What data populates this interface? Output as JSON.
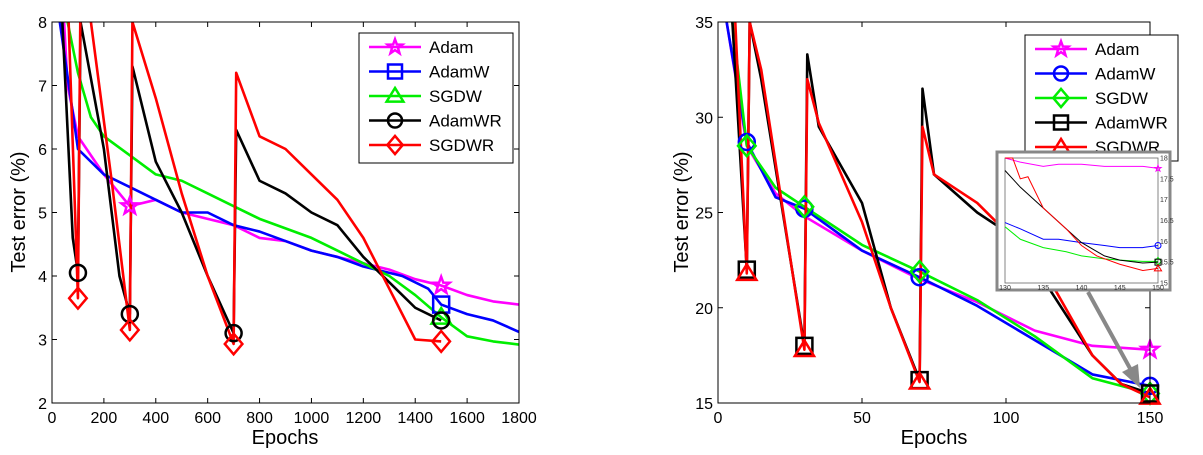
{
  "chart_data": [
    {
      "type": "line",
      "xlabel": "Epochs",
      "ylabel": "Test error (%)",
      "xlim": [
        0,
        1800
      ],
      "ylim": [
        2,
        8
      ],
      "xticks": [
        0,
        200,
        400,
        600,
        800,
        1000,
        1200,
        1400,
        1600,
        1800
      ],
      "yticks": [
        2,
        3,
        4,
        5,
        6,
        7,
        8
      ],
      "legend": "top-right",
      "grid": false,
      "series": [
        {
          "name": "Adam",
          "color": "#ff00ff",
          "marker": "star",
          "marker_x": [
            300,
            1500
          ],
          "points": [
            [
              40,
              8.5
            ],
            [
              60,
              7.0
            ],
            [
              100,
              6.2
            ],
            [
              150,
              5.9
            ],
            [
              200,
              5.6
            ],
            [
              300,
              5.1
            ],
            [
              400,
              5.2
            ],
            [
              500,
              5.0
            ],
            [
              600,
              4.9
            ],
            [
              700,
              4.8
            ],
            [
              800,
              4.6
            ],
            [
              900,
              4.55
            ],
            [
              1000,
              4.4
            ],
            [
              1100,
              4.3
            ],
            [
              1200,
              4.2
            ],
            [
              1300,
              4.1
            ],
            [
              1400,
              3.95
            ],
            [
              1500,
              3.85
            ],
            [
              1600,
              3.7
            ],
            [
              1700,
              3.6
            ],
            [
              1800,
              3.55
            ]
          ]
        },
        {
          "name": "AdamW",
          "color": "#0000ff",
          "marker": "square",
          "marker_x": [
            1500
          ],
          "points": [
            [
              30,
              8.0
            ],
            [
              100,
              6.0
            ],
            [
              200,
              5.6
            ],
            [
              300,
              5.4
            ],
            [
              400,
              5.2
            ],
            [
              500,
              5.0
            ],
            [
              600,
              5.0
            ],
            [
              700,
              4.8
            ],
            [
              800,
              4.7
            ],
            [
              900,
              4.55
            ],
            [
              1000,
              4.4
            ],
            [
              1100,
              4.3
            ],
            [
              1200,
              4.15
            ],
            [
              1350,
              4.0
            ],
            [
              1450,
              3.8
            ],
            [
              1500,
              3.55
            ],
            [
              1600,
              3.4
            ],
            [
              1700,
              3.3
            ],
            [
              1800,
              3.12
            ]
          ]
        },
        {
          "name": "SGDW",
          "color": "#00ee00",
          "marker": "triangle",
          "marker_x": [
            1500
          ],
          "points": [
            [
              60,
              8.0
            ],
            [
              100,
              7.2
            ],
            [
              150,
              6.5
            ],
            [
              200,
              6.2
            ],
            [
              300,
              5.9
            ],
            [
              400,
              5.6
            ],
            [
              500,
              5.5
            ],
            [
              600,
              5.3
            ],
            [
              700,
              5.1
            ],
            [
              800,
              4.9
            ],
            [
              900,
              4.75
            ],
            [
              1000,
              4.6
            ],
            [
              1100,
              4.4
            ],
            [
              1200,
              4.2
            ],
            [
              1300,
              4.0
            ],
            [
              1400,
              3.7
            ],
            [
              1500,
              3.35
            ],
            [
              1600,
              3.05
            ],
            [
              1700,
              2.97
            ],
            [
              1800,
              2.92
            ]
          ]
        },
        {
          "name": "AdamWR",
          "color": "#000000",
          "marker": "circle",
          "marker_x": [
            100,
            300,
            700,
            1500
          ],
          "points": [
            [
              40,
              8.0
            ],
            [
              80,
              4.6
            ],
            [
              100,
              4.05
            ],
            [
              110,
              8.0
            ],
            [
              200,
              6.0
            ],
            [
              260,
              4.0
            ],
            [
              300,
              3.4
            ],
            [
              310,
              7.3
            ],
            [
              400,
              5.8
            ],
            [
              500,
              5.0
            ],
            [
              600,
              4.0
            ],
            [
              700,
              3.1
            ],
            [
              710,
              6.3
            ],
            [
              800,
              5.5
            ],
            [
              900,
              5.3
            ],
            [
              1000,
              5.0
            ],
            [
              1100,
              4.8
            ],
            [
              1200,
              4.3
            ],
            [
              1300,
              3.9
            ],
            [
              1400,
              3.5
            ],
            [
              1500,
              3.3
            ]
          ]
        },
        {
          "name": "SGDWR",
          "color": "#ff0000",
          "marker": "diamond",
          "marker_x": [
            100,
            300,
            700,
            1500
          ],
          "points": [
            [
              60,
              8.5
            ],
            [
              100,
              3.65
            ],
            [
              110,
              8.5
            ],
            [
              150,
              8.0
            ],
            [
              230,
              5.5
            ],
            [
              300,
              3.15
            ],
            [
              310,
              8.0
            ],
            [
              400,
              6.8
            ],
            [
              500,
              5.3
            ],
            [
              600,
              4.0
            ],
            [
              700,
              2.93
            ],
            [
              710,
              7.2
            ],
            [
              800,
              6.2
            ],
            [
              900,
              6.0
            ],
            [
              1000,
              5.6
            ],
            [
              1100,
              5.2
            ],
            [
              1200,
              4.6
            ],
            [
              1300,
              3.8
            ],
            [
              1400,
              3.0
            ],
            [
              1500,
              2.97
            ]
          ]
        }
      ]
    },
    {
      "type": "line",
      "xlabel": "Epochs",
      "ylabel": "Test error (%)",
      "xlim": [
        0,
        150
      ],
      "ylim": [
        15,
        35
      ],
      "xticks": [
        0,
        50,
        100,
        150
      ],
      "yticks": [
        15,
        20,
        25,
        30,
        35
      ],
      "legend": "top-right",
      "grid": false,
      "series": [
        {
          "name": "Adam",
          "color": "#ff00ff",
          "marker": "star",
          "marker_x": [
            150
          ],
          "points": [
            [
              3,
              35
            ],
            [
              10,
              28.5
            ],
            [
              20,
              26
            ],
            [
              30,
              24.8
            ],
            [
              50,
              23
            ],
            [
              70,
              21.5
            ],
            [
              90,
              20.3
            ],
            [
              110,
              18.8
            ],
            [
              130,
              18
            ],
            [
              150,
              17.8
            ]
          ]
        },
        {
          "name": "AdamW",
          "color": "#0000ff",
          "marker": "circle",
          "marker_x": [
            10,
            30,
            70,
            150
          ],
          "points": [
            [
              3,
              35
            ],
            [
              10,
              28.7
            ],
            [
              20,
              25.8
            ],
            [
              30,
              25.2
            ],
            [
              50,
              23
            ],
            [
              70,
              21.6
            ],
            [
              90,
              20.1
            ],
            [
              110,
              18.3
            ],
            [
              130,
              16.5
            ],
            [
              150,
              15.9
            ]
          ]
        },
        {
          "name": "SGDW",
          "color": "#00ee00",
          "marker": "diamond",
          "marker_x": [
            10,
            30,
            70,
            150
          ],
          "points": [
            [
              5,
              35
            ],
            [
              10,
              28.5
            ],
            [
              20,
              26.3
            ],
            [
              30,
              25.3
            ],
            [
              50,
              23.3
            ],
            [
              70,
              21.9
            ],
            [
              90,
              20.4
            ],
            [
              110,
              18.5
            ],
            [
              130,
              16.3
            ],
            [
              150,
              15.5
            ]
          ]
        },
        {
          "name": "AdamWR",
          "color": "#000000",
          "marker": "square",
          "marker_x": [
            10,
            30,
            70,
            150
          ],
          "points": [
            [
              5,
              35
            ],
            [
              10,
              22
            ],
            [
              11,
              35
            ],
            [
              15,
              32
            ],
            [
              30,
              18
            ],
            [
              31,
              33.3
            ],
            [
              35,
              29.5
            ],
            [
              50,
              25.5
            ],
            [
              60,
              20
            ],
            [
              70,
              16.2
            ],
            [
              71,
              31.5
            ],
            [
              75,
              27
            ],
            [
              90,
              25
            ],
            [
              100,
              24
            ],
            [
              115,
              21
            ],
            [
              130,
              17.5
            ],
            [
              140,
              16
            ],
            [
              150,
              15.5
            ]
          ]
        },
        {
          "name": "SGDWR",
          "color": "#ff0000",
          "marker": "triangle",
          "marker_x": [
            10,
            30,
            70,
            150
          ],
          "points": [
            [
              6,
              35
            ],
            [
              10,
              21.8
            ],
            [
              11,
              35
            ],
            [
              15,
              32.5
            ],
            [
              30,
              17.8
            ],
            [
              31,
              32
            ],
            [
              35,
              29.7
            ],
            [
              50,
              24.5
            ],
            [
              60,
              20
            ],
            [
              70,
              16.1
            ],
            [
              71,
              29.5
            ],
            [
              75,
              27
            ],
            [
              90,
              25.5
            ],
            [
              100,
              24
            ],
            [
              115,
              21.5
            ],
            [
              130,
              17.5
            ],
            [
              140,
              16
            ],
            [
              150,
              15.3
            ]
          ]
        }
      ],
      "inset": {
        "xlim": [
          130,
          150
        ],
        "ylim": [
          15,
          18
        ],
        "xticks": [
          130,
          135,
          140,
          145,
          150
        ],
        "yticks": [
          15,
          15.5,
          16,
          16.5,
          17,
          17.5,
          18
        ],
        "series": [
          {
            "name": "Adam",
            "points": [
              [
                130,
                18
              ],
              [
                132,
                17.9
              ],
              [
                135,
                17.8
              ],
              [
                137,
                17.85
              ],
              [
                140,
                17.85
              ],
              [
                143,
                17.8
              ],
              [
                145,
                17.8
              ],
              [
                148,
                17.8
              ],
              [
                150,
                17.75
              ]
            ]
          },
          {
            "name": "AdamW",
            "points": [
              [
                130,
                16.45
              ],
              [
                132,
                16.3
              ],
              [
                135,
                16.05
              ],
              [
                137,
                16.05
              ],
              [
                140,
                15.97
              ],
              [
                143,
                15.9
              ],
              [
                145,
                15.85
              ],
              [
                148,
                15.85
              ],
              [
                150,
                15.9
              ]
            ]
          },
          {
            "name": "SGDW",
            "points": [
              [
                130,
                16.35
              ],
              [
                132,
                16.05
              ],
              [
                135,
                15.85
              ],
              [
                138,
                15.75
              ],
              [
                140,
                15.65
              ],
              [
                143,
                15.58
              ],
              [
                145,
                15.55
              ],
              [
                148,
                15.52
              ],
              [
                150,
                15.52
              ]
            ]
          },
          {
            "name": "AdamWR",
            "points": [
              [
                130,
                17.7
              ],
              [
                132,
                17.3
              ],
              [
                135,
                16.8
              ],
              [
                138,
                16.3
              ],
              [
                140,
                15.97
              ],
              [
                143,
                15.65
              ],
              [
                145,
                15.55
              ],
              [
                148,
                15.48
              ],
              [
                150,
                15.5
              ]
            ]
          },
          {
            "name": "SGDWR",
            "points": [
              [
                130,
                18
              ],
              [
                131,
                18
              ],
              [
                132,
                17.5
              ],
              [
                133,
                17.55
              ],
              [
                135,
                16.8
              ],
              [
                138,
                16.3
              ],
              [
                140,
                15.9
              ],
              [
                142,
                15.65
              ],
              [
                145,
                15.45
              ],
              [
                148,
                15.3
              ],
              [
                150,
                15.35
              ]
            ]
          }
        ]
      }
    }
  ]
}
